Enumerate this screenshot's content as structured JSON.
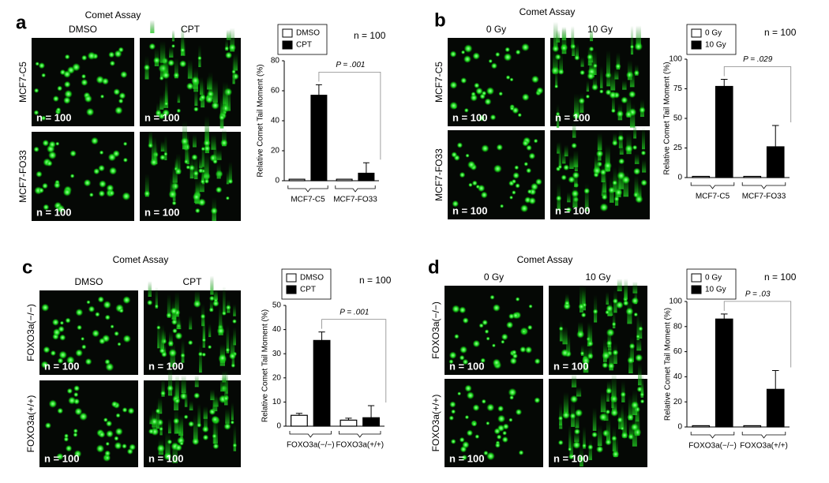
{
  "panels": [
    {
      "letter": "a",
      "title": "Comet Assay",
      "columns": [
        "DMSO",
        "CPT"
      ],
      "rows": [
        "MCF7-C5",
        "MCF7-FO33"
      ],
      "image_labels": [
        [
          "n = 100",
          "n = 100"
        ],
        [
          "n = 100",
          "n = 100"
        ]
      ],
      "n_label": "n = 100"
    },
    {
      "letter": "b",
      "title": "Comet Assay",
      "columns": [
        "0 Gy",
        "10 Gy"
      ],
      "rows": [
        "MCF7-C5",
        "MCF7-FO33"
      ],
      "image_labels": [
        [
          "n = 100",
          "n = 100"
        ],
        [
          "n = 100",
          "n = 100"
        ]
      ],
      "n_label": "n = 100"
    },
    {
      "letter": "c",
      "title": "Comet Assay",
      "columns": [
        "DMSO",
        "CPT"
      ],
      "rows": [
        "FOXO3a(−/−)",
        "FOXO3a(+/+)"
      ],
      "image_labels": [
        [
          "n = 100",
          "n = 100"
        ],
        [
          "n = 100",
          "n = 100"
        ]
      ],
      "n_label": "n = 100"
    },
    {
      "letter": "d",
      "title": "Comet Assay",
      "columns": [
        "0 Gy",
        "10 Gy"
      ],
      "rows": [
        "FOXO3a(−/−)",
        "FOXO3a(+/+)"
      ],
      "image_labels": [
        [
          "n = 100",
          "n = 100"
        ],
        [
          "n = 100",
          "n = 100"
        ]
      ],
      "n_label": "n = 100"
    }
  ],
  "chart_data": [
    {
      "type": "bar",
      "ylabel": "Relative Comet Tail Moment (%)",
      "categories": [
        "MCF7-C5",
        "MCF7-FO33"
      ],
      "series": [
        {
          "name": "DMSO",
          "color": "#ffffff",
          "values": [
            1,
            1
          ]
        },
        {
          "name": "CPT",
          "color": "#000000",
          "values": [
            57,
            5
          ],
          "errors": [
            7,
            7
          ]
        }
      ],
      "ylim": [
        0,
        80
      ],
      "yticks": [
        0,
        20,
        40,
        60,
        80
      ],
      "annotation": "P = .001"
    },
    {
      "type": "bar",
      "ylabel": "Relative Comet Tail Moment (%)",
      "categories": [
        "MCF7-C5",
        "MCF7-FO33"
      ],
      "series": [
        {
          "name": "0 Gy",
          "color": "#ffffff",
          "values": [
            1,
            1
          ]
        },
        {
          "name": "10 Gy",
          "color": "#000000",
          "values": [
            77,
            26
          ],
          "errors": [
            6,
            18
          ]
        }
      ],
      "ylim": [
        0,
        100
      ],
      "yticks": [
        0,
        25,
        50,
        75,
        100
      ],
      "annotation": "P = .029"
    },
    {
      "type": "bar",
      "ylabel": "Relative Comet Tail Moment (%)",
      "categories": [
        "FOXO3a(−/−)",
        "FOXO3a(+/+)"
      ],
      "series": [
        {
          "name": "DMSO",
          "color": "#ffffff",
          "values": [
            4.5,
            2.5
          ],
          "errors": [
            0.8,
            0.8
          ]
        },
        {
          "name": "CPT",
          "color": "#000000",
          "values": [
            35.5,
            3.5
          ],
          "errors": [
            3.5,
            5
          ]
        }
      ],
      "ylim": [
        0,
        50
      ],
      "yticks": [
        0,
        10,
        20,
        30,
        40,
        50
      ],
      "annotation": "P = .001"
    },
    {
      "type": "bar",
      "ylabel": "Relative Comet Tail Moment (%)",
      "categories": [
        "FOXO3a(−/−)",
        "FOXO3a(+/+)"
      ],
      "series": [
        {
          "name": "0 Gy",
          "color": "#ffffff",
          "values": [
            1,
            1
          ]
        },
        {
          "name": "10 Gy",
          "color": "#000000",
          "values": [
            86,
            30
          ],
          "errors": [
            4,
            15
          ]
        }
      ],
      "ylim": [
        0,
        100
      ],
      "yticks": [
        0,
        20,
        40,
        60,
        80,
        100
      ],
      "annotation": "P = .03"
    }
  ]
}
